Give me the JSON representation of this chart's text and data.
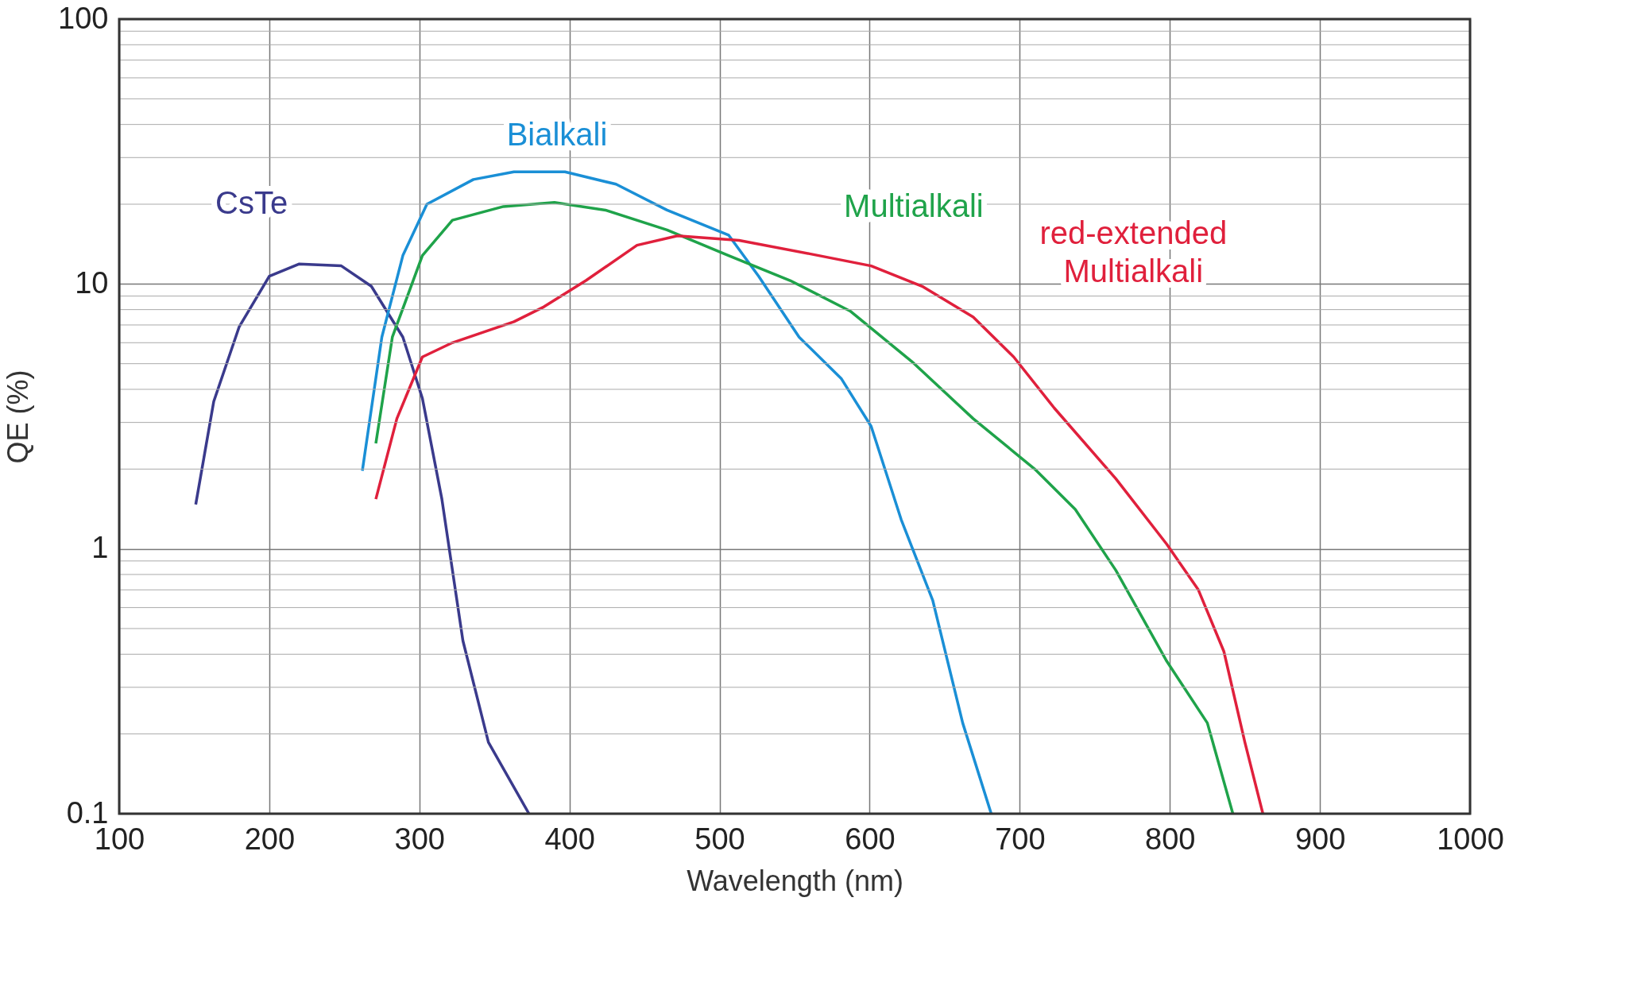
{
  "chart_data": {
    "type": "line",
    "xlabel": "Wavelength (nm)",
    "ylabel": "QE (%)",
    "log": "y",
    "grid": true,
    "legend": false,
    "marker": "none",
    "line_style": "solid",
    "xlim": [
      100,
      1000
    ],
    "xticks": [
      100,
      200,
      300,
      400,
      500,
      600,
      700,
      800,
      900,
      1000
    ],
    "ylim": [
      0.1,
      100
    ],
    "yticks": [
      0.1,
      1,
      10,
      100
    ],
    "series": [
      {
        "name": "CsTe",
        "color": "#3a3a8c",
        "x": [
          151,
          163,
          180,
          200,
          220,
          248,
          268,
          289,
          302,
          315,
          329,
          346,
          373
        ],
        "values": [
          1.47,
          3.6,
          6.9,
          10.7,
          11.9,
          11.7,
          9.8,
          6.3,
          3.7,
          1.54,
          0.45,
          0.186,
          0.1
        ]
      },
      {
        "name": "Bialkali",
        "color": "#1a8fd6",
        "x": [
          262,
          275,
          289,
          305,
          336,
          363,
          397,
          431,
          465,
          506,
          526,
          553,
          581,
          601,
          621,
          642,
          662,
          681
        ],
        "values": [
          1.97,
          6.3,
          12.8,
          20,
          24.8,
          26.5,
          26.5,
          23.8,
          19,
          15.3,
          10.7,
          6.3,
          4.4,
          2.9,
          1.29,
          0.64,
          0.22,
          0.1
        ]
      },
      {
        "name": "Multialkali",
        "color": "#1fa34a",
        "x": [
          271,
          282,
          302,
          322,
          356,
          390,
          424,
          465,
          506,
          547,
          587,
          628,
          669,
          710,
          737,
          764,
          798,
          825,
          842
        ],
        "values": [
          2.5,
          6.3,
          12.8,
          17.4,
          19.6,
          20.3,
          19,
          16,
          12.8,
          10.3,
          7.9,
          5.1,
          3.1,
          2.0,
          1.41,
          0.83,
          0.376,
          0.22,
          0.1
        ]
      },
      {
        "name": "red-extended Multialkali",
        "color": "#e0203c",
        "x": [
          271,
          285,
          302,
          322,
          363,
          383,
          411,
          445,
          472,
          513,
          560,
          601,
          635,
          669,
          696,
          723,
          764,
          798,
          819,
          836,
          850,
          862
        ],
        "values": [
          1.54,
          3.1,
          5.3,
          6.0,
          7.2,
          8.2,
          10.3,
          14,
          15.2,
          14.6,
          13,
          11.7,
          9.8,
          7.5,
          5.3,
          3.4,
          1.84,
          1.04,
          0.7,
          0.41,
          0.186,
          0.1
        ]
      }
    ]
  }
}
